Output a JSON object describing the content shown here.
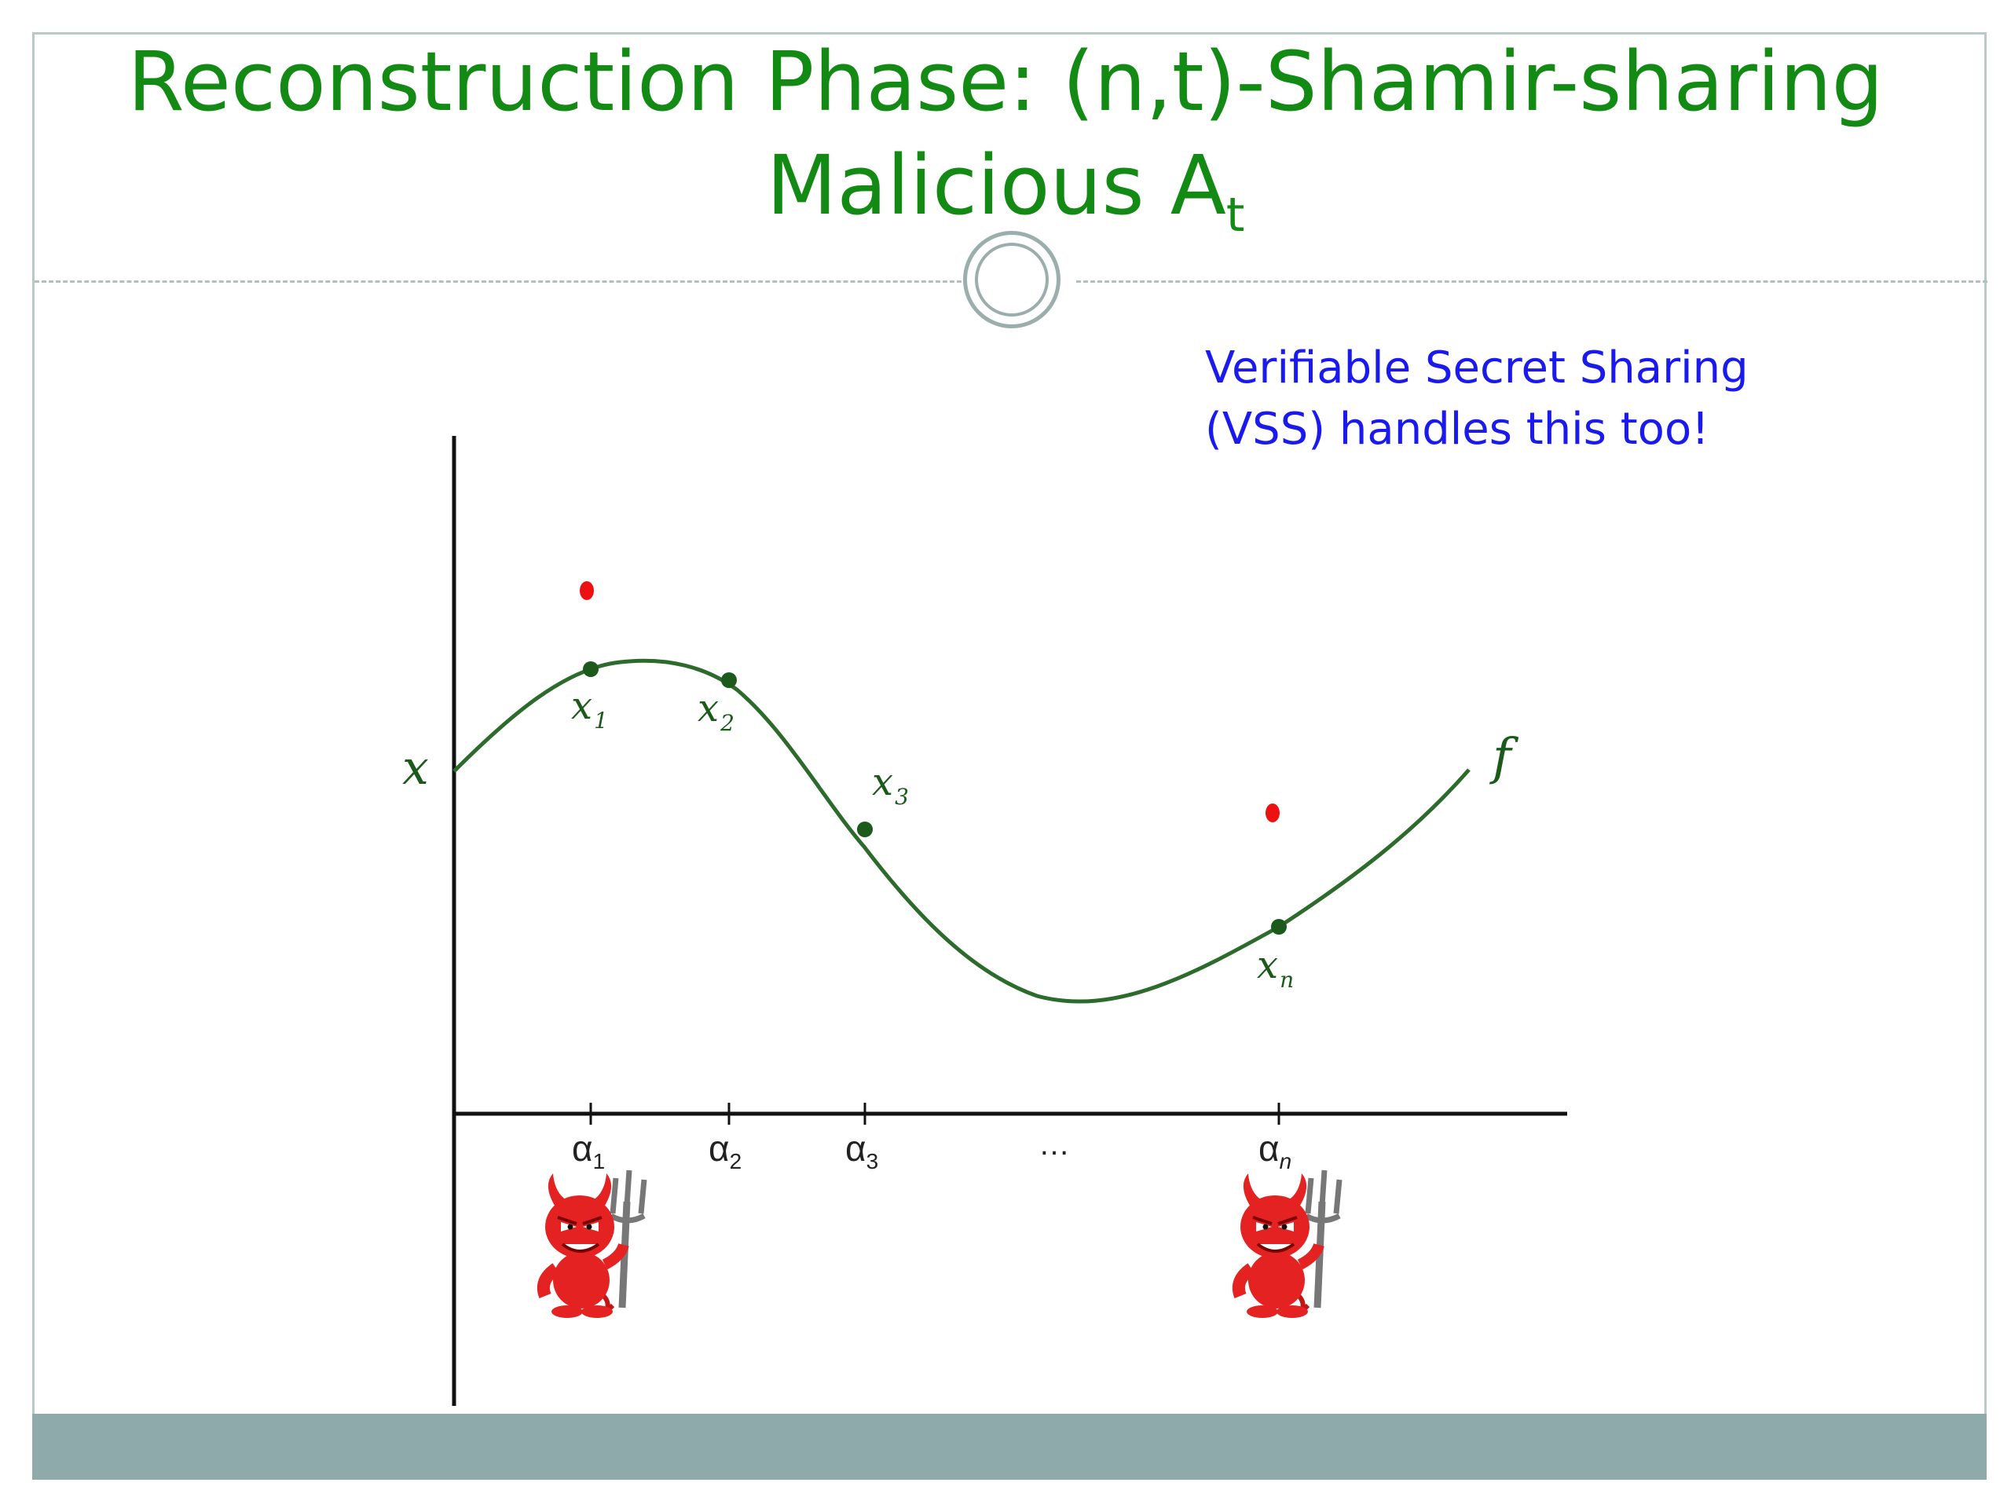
{
  "slide": {
    "title_line1": "Reconstruction Phase: (n,t)-Shamir-sharing",
    "title_line2_main": "Malicious A",
    "title_line2_sub": "t",
    "note_line1": "Verifiable Secret Sharing",
    "note_line2": "(VSS) handles this too!"
  },
  "diagram": {
    "y_axis_label": "x",
    "curve_label": "f",
    "x_ticks": [
      {
        "main": "α",
        "sub": "1"
      },
      {
        "main": "α",
        "sub": "2"
      },
      {
        "main": "α",
        "sub": "3"
      },
      {
        "main": "…",
        "sub": ""
      },
      {
        "main": "α",
        "sub": "n"
      }
    ],
    "share_points": [
      {
        "main": "x",
        "sub": "1"
      },
      {
        "main": "x",
        "sub": "2"
      },
      {
        "main": "x",
        "sub": "3"
      },
      {
        "main": "x",
        "sub": "n"
      }
    ],
    "corrupted_points": 2,
    "adversaries": [
      "devil-icon",
      "devil-icon"
    ],
    "colors": {
      "title": "#138a13",
      "note": "#1a1aee",
      "curve": "#2d6b2d",
      "point": "#1c5a1c",
      "corrupt": "#ee1111",
      "devil": "#e52222"
    }
  }
}
